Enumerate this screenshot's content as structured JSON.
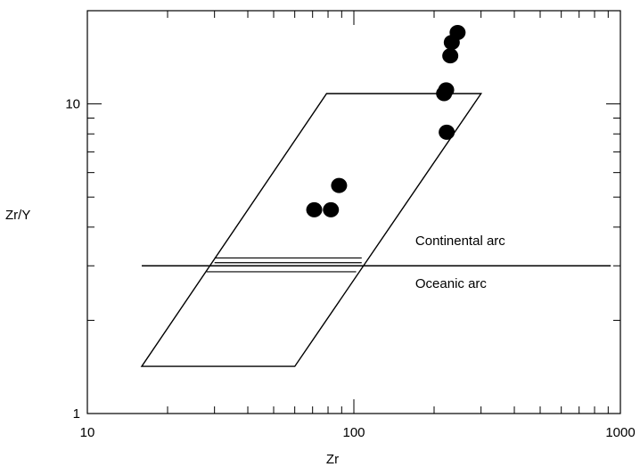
{
  "chart_data": {
    "type": "scatter",
    "title": "",
    "xlabel": "Zr",
    "ylabel": "Zr/Y",
    "xscale": "log",
    "yscale": "log",
    "xlim": [
      10,
      1000
    ],
    "ylim": [
      1,
      20
    ],
    "xticks": [
      {
        "value": 10,
        "label": "10"
      },
      {
        "value": 100,
        "label": "100"
      },
      {
        "value": 1000,
        "label": "1000"
      }
    ],
    "yticks": [
      {
        "value": 1,
        "label": "1"
      },
      {
        "value": 10,
        "label": "10"
      }
    ],
    "grid": false,
    "legend": "none",
    "points": [
      {
        "x": 71,
        "y": 4.55
      },
      {
        "x": 82,
        "y": 4.55
      },
      {
        "x": 88,
        "y": 5.45
      },
      {
        "x": 218,
        "y": 10.8
      },
      {
        "x": 222,
        "y": 11.1
      },
      {
        "x": 223,
        "y": 8.1
      },
      {
        "x": 230,
        "y": 14.3
      },
      {
        "x": 233,
        "y": 15.8
      },
      {
        "x": 245,
        "y": 17.0
      }
    ],
    "field_polygon": [
      [
        16,
        1.42
      ],
      [
        60,
        1.42
      ],
      [
        300,
        10.8
      ],
      [
        79,
        10.8
      ]
    ],
    "boundary_line": {
      "x": [
        16,
        920
      ],
      "y": 3.0
    },
    "band_lines": [
      {
        "x": [
          30,
          107
        ],
        "y": 3.18
      },
      {
        "x": [
          30,
          107
        ],
        "y": 3.07
      },
      {
        "x": [
          28,
          102
        ],
        "y": 2.87
      }
    ],
    "annotations": [
      {
        "text": "Continental arc",
        "x": 170,
        "y": 3.5
      },
      {
        "text": "Oceanic arc",
        "x": 170,
        "y": 2.55
      }
    ],
    "colors": {
      "points": "#000000",
      "lines": "#000000",
      "background": "#ffffff"
    }
  }
}
